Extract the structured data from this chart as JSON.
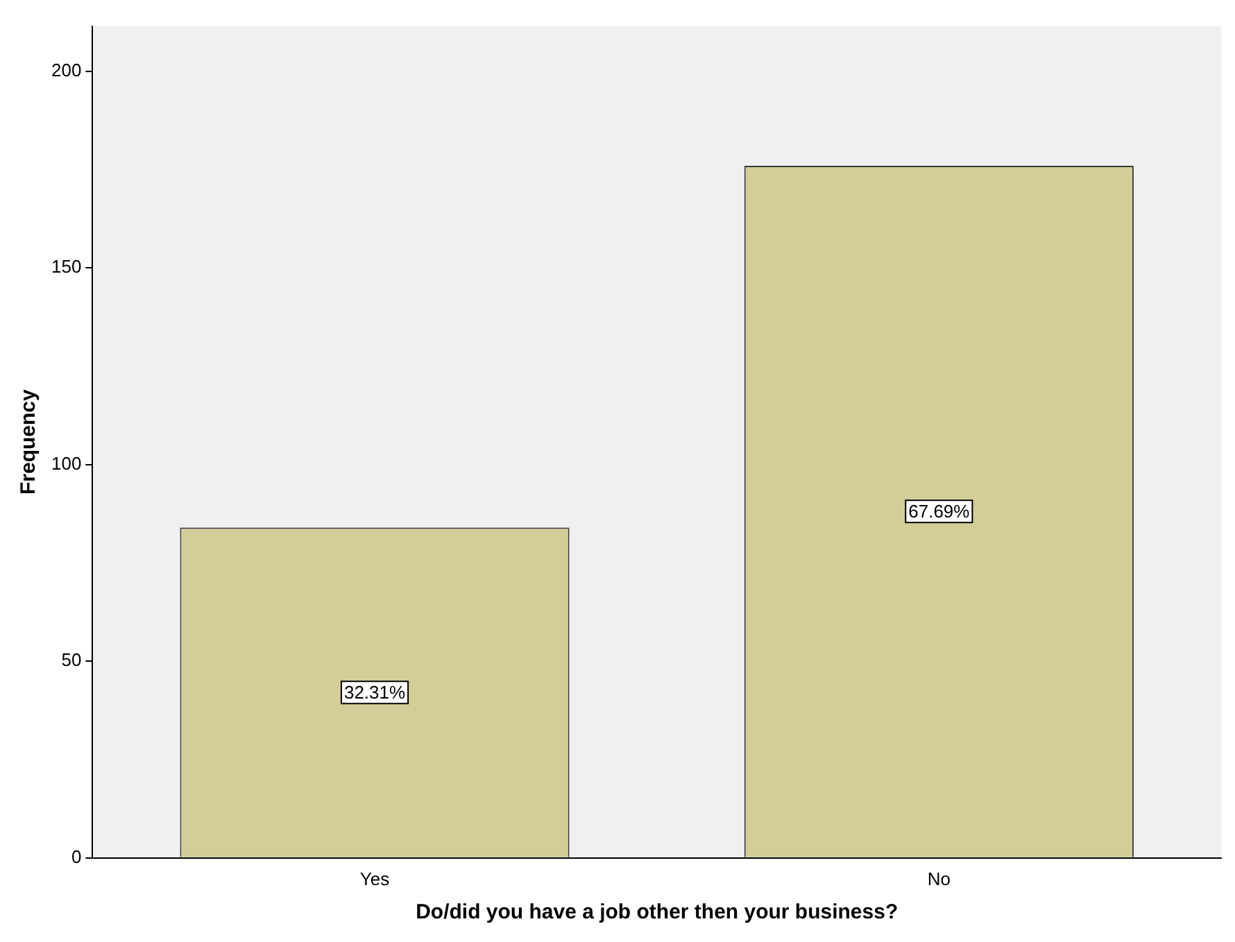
{
  "chart_data": {
    "type": "bar",
    "xlabel": "Do/did you have a job other then your business?",
    "ylabel": "Frequency",
    "categories": [
      "Yes",
      "No"
    ],
    "values": [
      84,
      176
    ],
    "annotations": [
      "32.31%",
      "67.69%"
    ],
    "color": "#d3ce97",
    "ylim": [
      0,
      211.5
    ],
    "yticks": [
      0,
      50,
      100,
      150,
      200
    ],
    "grid": false,
    "legend": false
  }
}
